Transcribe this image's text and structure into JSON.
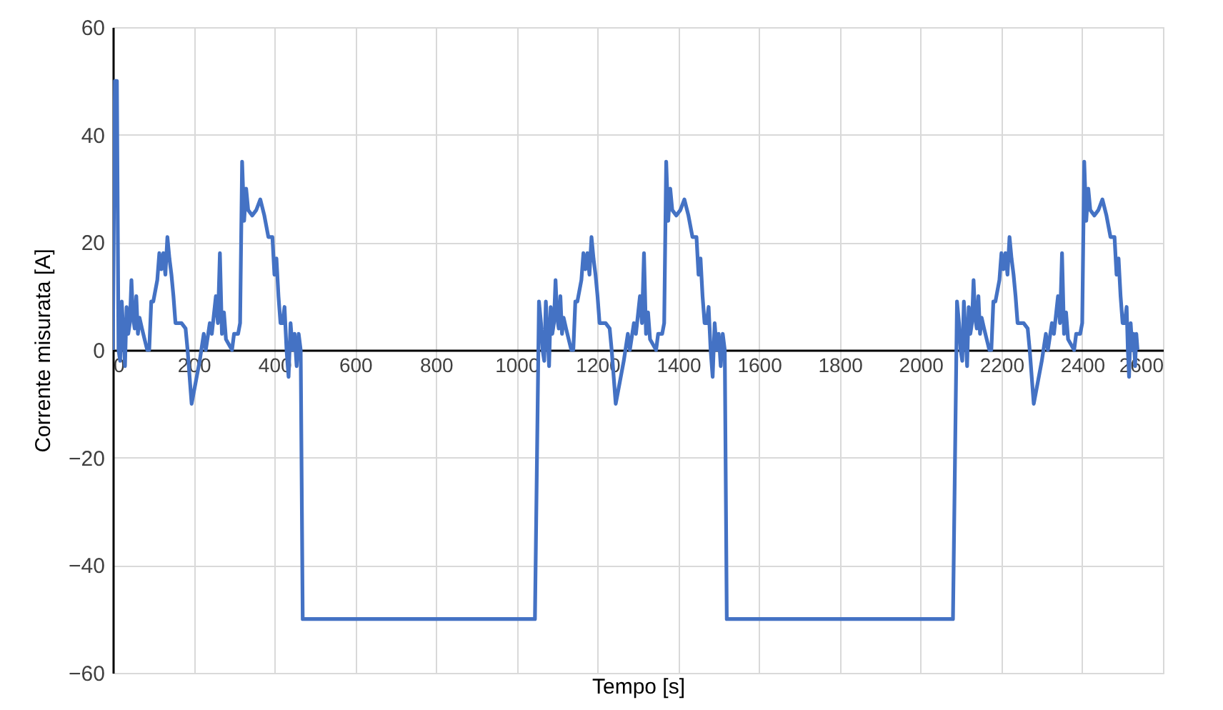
{
  "chart_data": {
    "type": "line",
    "xlabel": "Tempo [s]",
    "ylabel": "Corrente misurata [A]",
    "xlim": [
      0,
      2600
    ],
    "xticks": [
      0,
      200,
      400,
      600,
      800,
      1000,
      1200,
      1400,
      1600,
      1800,
      2000,
      2200,
      2400,
      2600
    ],
    "ylim": [
      -60,
      60
    ],
    "yticks": [
      -60,
      -40,
      -20,
      0,
      20,
      40,
      60
    ],
    "grid": true,
    "series": [
      {
        "color": "#4472c4",
        "x": [
          0,
          5,
          10,
          14,
          18,
          22,
          26,
          30,
          34,
          38,
          42,
          46,
          50,
          54,
          58,
          62,
          66,
          72,
          85,
          90,
          95,
          100,
          110,
          115,
          120,
          125,
          130,
          135,
          140,
          145,
          150,
          155,
          170,
          180,
          185,
          195,
          205,
          215,
          225,
          230,
          240,
          245,
          255,
          260,
          265,
          270,
          275,
          280,
          295,
          300,
          310,
          315,
          320,
          325,
          330,
          335,
          345,
          355,
          365,
          375,
          385,
          395,
          400,
          405,
          410,
          415,
          420,
          425,
          430,
          435,
          440,
          445,
          450,
          455,
          460,
          465,
          470,
          1045,
          1055,
          1060,
          1064,
          1068,
          1072,
          1076,
          1080,
          1084,
          1088,
          1092,
          1096,
          1100,
          1104,
          1108,
          1112,
          1116,
          1122,
          1135,
          1140,
          1145,
          1150,
          1160,
          1165,
          1170,
          1175,
          1180,
          1185,
          1190,
          1195,
          1200,
          1205,
          1220,
          1230,
          1235,
          1245,
          1255,
          1265,
          1275,
          1280,
          1290,
          1295,
          1305,
          1310,
          1315,
          1320,
          1325,
          1330,
          1345,
          1350,
          1360,
          1365,
          1370,
          1375,
          1380,
          1385,
          1395,
          1405,
          1415,
          1425,
          1435,
          1445,
          1450,
          1455,
          1460,
          1465,
          1470,
          1475,
          1480,
          1485,
          1490,
          1495,
          1500,
          1505,
          1510,
          1515,
          1520,
          2080,
          2090,
          2095,
          2099,
          2103,
          2107,
          2111,
          2115,
          2119,
          2123,
          2127,
          2131,
          2135,
          2139,
          2143,
          2147,
          2151,
          2157,
          2170,
          2175,
          2180,
          2185,
          2195,
          2200,
          2205,
          2210,
          2215,
          2220,
          2225,
          2230,
          2235,
          2240,
          2255,
          2265,
          2270,
          2280,
          2290,
          2300,
          2310,
          2315,
          2325,
          2330,
          2340,
          2345,
          2350,
          2355,
          2360,
          2365,
          2380,
          2385,
          2395,
          2400,
          2405,
          2410,
          2415,
          2420,
          2430,
          2440,
          2450,
          2460,
          2470,
          2480,
          2485,
          2490,
          2495,
          2500,
          2505,
          2510,
          2513,
          2516,
          2520,
          2524,
          2527,
          2531,
          2534,
          2537
        ],
        "values": [
          0,
          50,
          50,
          0,
          -2,
          9,
          3,
          -3,
          8,
          3,
          5,
          13,
          6,
          4,
          10,
          3,
          6,
          4,
          0,
          0,
          9,
          9,
          13,
          18,
          15,
          18,
          14,
          21,
          17,
          14,
          10,
          5,
          5,
          4,
          0,
          -10,
          -6,
          -2,
          3,
          0,
          5,
          3,
          10,
          5,
          18,
          3,
          7,
          2,
          0,
          3,
          3,
          5,
          35,
          24,
          30,
          26,
          25,
          26,
          28,
          25,
          21,
          21,
          14,
          17,
          10,
          5,
          5,
          8,
          0,
          -5,
          5,
          0,
          3,
          -3,
          3,
          0,
          -50,
          -50,
          9,
          5,
          0,
          -2,
          9,
          3,
          -3,
          8,
          3,
          5,
          13,
          6,
          4,
          10,
          3,
          6,
          4,
          0,
          0,
          9,
          9,
          13,
          18,
          15,
          18,
          14,
          21,
          17,
          14,
          10,
          5,
          5,
          4,
          0,
          -10,
          -6,
          -2,
          3,
          0,
          5,
          3,
          10,
          5,
          18,
          3,
          7,
          2,
          0,
          3,
          3,
          5,
          35,
          24,
          30,
          26,
          25,
          26,
          28,
          25,
          21,
          21,
          14,
          17,
          10,
          5,
          5,
          8,
          0,
          -5,
          5,
          0,
          3,
          -3,
          3,
          0,
          -50,
          -50,
          9,
          5,
          0,
          -2,
          9,
          3,
          -3,
          8,
          3,
          5,
          13,
          6,
          4,
          10,
          3,
          6,
          4,
          0,
          0,
          9,
          9,
          13,
          18,
          15,
          18,
          14,
          21,
          17,
          14,
          10,
          5,
          5,
          4,
          0,
          -10,
          -6,
          -2,
          3,
          0,
          5,
          3,
          10,
          5,
          18,
          3,
          7,
          2,
          0,
          3,
          3,
          5,
          35,
          24,
          30,
          26,
          25,
          26,
          28,
          25,
          21,
          21,
          14,
          17,
          10,
          5,
          5,
          8,
          0,
          -5,
          5,
          0,
          3,
          -3,
          3,
          0
        ]
      }
    ]
  }
}
